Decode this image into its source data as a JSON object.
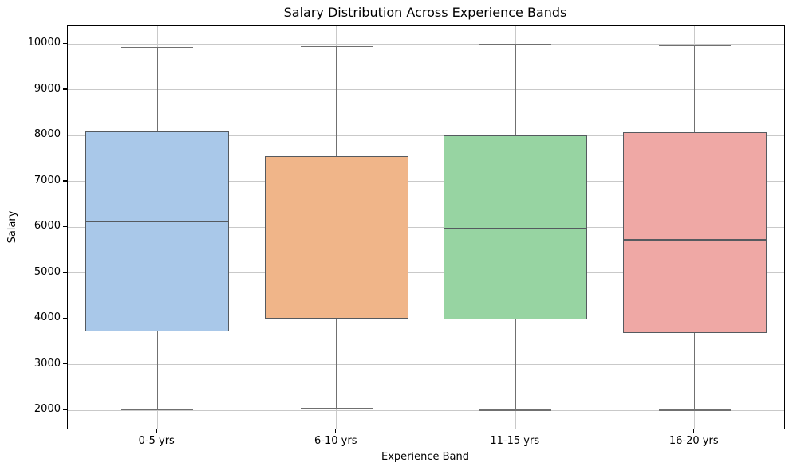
{
  "figure": {
    "title": "Salary Distribution Across Experience Bands"
  },
  "chart_data": {
    "type": "box",
    "title": "Salary Distribution Across Experience Bands",
    "xlabel": "Experience Band",
    "ylabel": "Salary",
    "categories": [
      "0-5 yrs",
      "6-10 yrs",
      "11-15 yrs",
      "16-20 yrs"
    ],
    "series": [
      {
        "name": "0-5 yrs",
        "whisker_low": 2020,
        "q1": 3720,
        "median": 6130,
        "q3": 8100,
        "whisker_high": 9930,
        "fill_color": "#A9C8E9"
      },
      {
        "name": "6-10 yrs",
        "whisker_low": 2045,
        "q1": 4000,
        "median": 5610,
        "q3": 7555,
        "whisker_high": 9945,
        "fill_color": "#F0B589"
      },
      {
        "name": "11-15 yrs",
        "whisker_low": 2005,
        "q1": 3985,
        "median": 5975,
        "q3": 8010,
        "whisker_high": 9995,
        "fill_color": "#97D4A2"
      },
      {
        "name": "16-20 yrs",
        "whisker_low": 2005,
        "q1": 3700,
        "median": 5730,
        "q3": 8080,
        "whisker_high": 9970,
        "fill_color": "#EFA8A5"
      }
    ],
    "yticks": [
      2000,
      3000,
      4000,
      5000,
      6000,
      7000,
      8000,
      9000,
      10000
    ],
    "ylim": [
      1605,
      10390
    ],
    "grid": true,
    "legend": "none",
    "edge_color": "#555A5F",
    "whisker_color": "#707070",
    "grid_color": "#C9C9C9",
    "spine_color": "#000000",
    "box_width_fraction": 0.8,
    "cap_width_fraction": 0.5
  }
}
